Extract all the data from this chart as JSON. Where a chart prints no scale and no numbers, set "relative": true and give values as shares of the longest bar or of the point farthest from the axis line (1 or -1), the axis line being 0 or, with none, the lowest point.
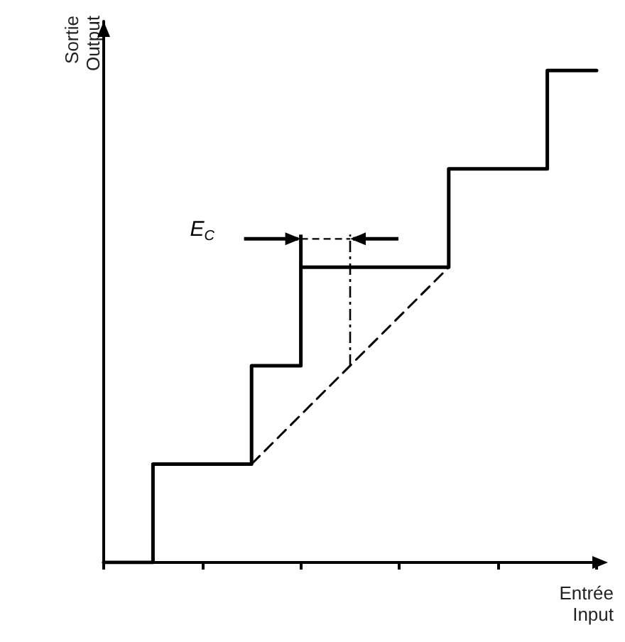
{
  "chart_data": {
    "type": "step",
    "relative": true,
    "xlabel": "Entrée\nInput",
    "ylabel": "Sortie\nOutput",
    "categories": [
      null,
      null,
      null,
      null,
      null,
      null,
      null,
      null,
      null,
      null,
      null
    ],
    "series": [
      {
        "color": "#000000",
        "line_style": "solid",
        "values": [
          0,
          0.2,
          0.2,
          0.4,
          0.6,
          0.6,
          0.6,
          0.8,
          0.8,
          1,
          1
        ]
      },
      {
        "type": "line",
        "color": "#000000",
        "line_style": "dashed",
        "values": [
          null,
          null,
          null,
          0.2,
          null,
          null,
          null,
          0.6,
          null,
          null,
          null
        ]
      }
    ],
    "annotations": [
      "E$_{C}$"
    ],
    "marker": "none"
  }
}
